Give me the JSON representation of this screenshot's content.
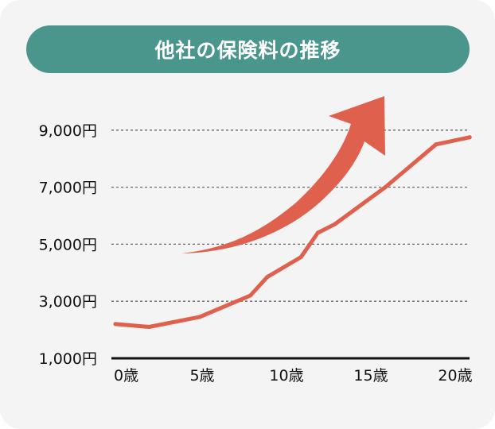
{
  "colors": {
    "background": "#f4f4f4",
    "title_bg": "#4a968d",
    "line": "#e0604e",
    "arrow": "#e0604e",
    "grid": "#666666",
    "axis": "#111111"
  },
  "chart_data": {
    "type": "line",
    "title": "他社の保険料の推移",
    "xlabel": "",
    "ylabel": "",
    "xlim": [
      0,
      21
    ],
    "ylim": [
      1000,
      10000
    ],
    "x_ticks": [
      0,
      5,
      10,
      15,
      20
    ],
    "x_tick_labels": [
      "0歳",
      "5歳",
      "10歳",
      "15歳",
      "20歳"
    ],
    "y_ticks": [
      1000,
      3000,
      5000,
      7000,
      9000
    ],
    "y_tick_labels": [
      "1,000円",
      "3,000円",
      "5,000円",
      "7,000円",
      "9,000円"
    ],
    "grid": "horizontal dotted",
    "series": [
      {
        "x": [
          0,
          2,
          5,
          8,
          9,
          11,
          12,
          13,
          16,
          19,
          21
        ],
        "values": [
          2200,
          2100,
          2450,
          3200,
          3850,
          4550,
          5400,
          5700,
          7000,
          8500,
          8750
        ]
      }
    ],
    "annotations": [
      {
        "type": "arrow",
        "direction": "rising"
      }
    ]
  }
}
